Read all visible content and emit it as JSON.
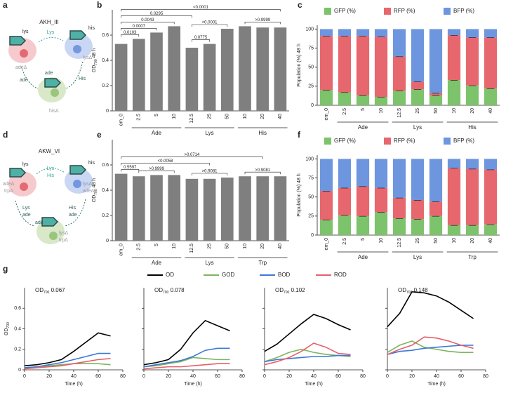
{
  "panel_labels": [
    "a",
    "b",
    "c",
    "d",
    "e",
    "f",
    "g"
  ],
  "diagrams": [
    {
      "title": "AKH_III",
      "labels": [
        "lys",
        "his",
        "Lys",
        "adeΔ",
        "lysΔ",
        "ade",
        "His",
        "ade",
        "hisΔ"
      ]
    },
    {
      "title": "AKW_VI",
      "labels": [
        "lys",
        "his",
        "Lys",
        "His",
        "adeΔ",
        "trpΔ",
        "lysΔ",
        "adeΔ",
        "Lys",
        "ade",
        "His",
        "ade",
        "ade",
        "lysΔ",
        "trpΔ"
      ]
    }
  ],
  "chart_data": [
    {
      "type": "bar",
      "ylabel": [
        "OD",
        "700",
        " 48 h"
      ],
      "color": "#7f7f7f",
      "categories": [
        "em_0",
        "2.5",
        "5",
        "10",
        "12.5",
        "25",
        "50",
        "10",
        "20",
        "40"
      ],
      "values": [
        0.53,
        0.57,
        0.62,
        0.67,
        0.5,
        0.53,
        0.65,
        0.67,
        0.66,
        0.66
      ],
      "groups": [
        {
          "label": "Ade",
          "span": [
            1,
            3
          ]
        },
        {
          "label": "Lys",
          "span": [
            4,
            6
          ]
        },
        {
          "label": "His",
          "span": [
            7,
            9
          ]
        }
      ],
      "brackets": [
        {
          "between": [
            0,
            1
          ],
          "label": "0.0103"
        },
        {
          "between": [
            0,
            2
          ],
          "label": "0.0007"
        },
        {
          "between": [
            0,
            3
          ],
          "label": "0.0043"
        },
        {
          "between": [
            0,
            4
          ],
          "label": "0.0295"
        },
        {
          "between": [
            0,
            9
          ],
          "label": "<0.0001"
        },
        {
          "between": [
            4,
            5
          ],
          "label": "0.0775"
        },
        {
          "between": [
            4,
            6
          ],
          "label": "<0.0001"
        },
        {
          "between": [
            7,
            9
          ],
          "label": ">0.9999"
        }
      ],
      "ylim": [
        0,
        0.8
      ],
      "yticks": [
        0,
        0.2,
        0.4,
        0.6
      ]
    },
    {
      "type": "stacked_bar",
      "ylabel": [
        "Population (%) 48 h"
      ],
      "categories": [
        "em_0",
        "2.5",
        "5",
        "10",
        "12.5",
        "25",
        "50",
        "10",
        "20",
        "40"
      ],
      "series": [
        {
          "name": "GFP (%)",
          "color": "#7cc36b",
          "values": [
            20,
            17,
            13,
            11,
            19,
            21,
            13,
            33,
            26,
            22
          ]
        },
        {
          "name": "RFP (%)",
          "color": "#e7676f",
          "values": [
            71,
            74,
            78,
            79,
            45,
            10,
            3,
            59,
            63,
            67
          ]
        },
        {
          "name": "BFP (%)",
          "color": "#6d96df",
          "values": [
            9,
            9,
            9,
            10,
            36,
            69,
            84,
            8,
            11,
            11
          ]
        }
      ],
      "groups": [
        {
          "label": "Ade",
          "span": [
            1,
            3
          ]
        },
        {
          "label": "Lys",
          "span": [
            4,
            6
          ]
        },
        {
          "label": "His",
          "span": [
            7,
            9
          ]
        }
      ],
      "ylim": [
        0,
        105
      ],
      "yticks": [
        0,
        25,
        50,
        75,
        100
      ]
    },
    {
      "type": "bar",
      "ylabel": [
        "OD",
        "700",
        " 48 h"
      ],
      "color": "#7f7f7f",
      "categories": [
        "em_0",
        "2.5",
        "5",
        "10",
        "12.5",
        "25",
        "50",
        "10",
        "20",
        "40"
      ],
      "values": [
        0.53,
        0.51,
        0.52,
        0.52,
        0.49,
        0.49,
        0.5,
        0.51,
        0.51,
        0.51
      ],
      "groups": [
        {
          "label": "Ade",
          "span": [
            1,
            3
          ]
        },
        {
          "label": "Lys",
          "span": [
            4,
            6
          ]
        },
        {
          "label": "Trp",
          "span": [
            7,
            9
          ]
        }
      ],
      "brackets": [
        {
          "between": [
            0,
            1
          ],
          "label": "0.5597"
        },
        {
          "between": [
            1,
            3
          ],
          "label": ">0.9999"
        },
        {
          "between": [
            0,
            5
          ],
          "label": "<0.0058"
        },
        {
          "between": [
            4,
            6
          ],
          "label": ">0.9081"
        },
        {
          "between": [
            0,
            8
          ],
          "label": ">0.0714"
        },
        {
          "between": [
            7,
            9
          ],
          "label": ">0.9081"
        }
      ],
      "ylim": [
        0,
        0.8
      ],
      "yticks": [
        0,
        0.2,
        0.4,
        0.6
      ]
    },
    {
      "type": "stacked_bar",
      "ylabel": [
        "Population (%) 48 h"
      ],
      "categories": [
        "em_0",
        "2.5",
        "5",
        "10",
        "12.5",
        "25",
        "50",
        "10",
        "20",
        "40"
      ],
      "series": [
        {
          "name": "GFP (%)",
          "color": "#7cc36b",
          "values": [
            20,
            26,
            25,
            30,
            22,
            21,
            25,
            13,
            13,
            14
          ]
        },
        {
          "name": "RFP (%)",
          "color": "#e7676f",
          "values": [
            38,
            36,
            39,
            32,
            27,
            25,
            19,
            75,
            74,
            72
          ]
        },
        {
          "name": "BFP (%)",
          "color": "#6d96df",
          "values": [
            42,
            38,
            36,
            38,
            51,
            54,
            56,
            12,
            13,
            14
          ]
        }
      ],
      "groups": [
        {
          "label": "Ade",
          "span": [
            1,
            3
          ]
        },
        {
          "label": "Lys",
          "span": [
            4,
            6
          ]
        },
        {
          "label": "Trp",
          "span": [
            7,
            9
          ]
        }
      ],
      "ylim": [
        0,
        105
      ],
      "yticks": [
        0,
        25,
        50,
        75,
        100
      ]
    },
    {
      "type": "line",
      "title": [
        "OD",
        "700",
        " 0.067"
      ],
      "ylabel": [
        "OD",
        "700"
      ],
      "xlabel": "Time (h)",
      "x": [
        0,
        10,
        20,
        30,
        40,
        50,
        60,
        70
      ],
      "series": [
        {
          "name": "OD",
          "color": "#000000",
          "values": [
            0.04,
            0.05,
            0.07,
            0.1,
            0.18,
            0.27,
            0.36,
            0.33
          ]
        },
        {
          "name": "GOD",
          "color": "#7cb55e",
          "values": [
            0.02,
            0.03,
            0.04,
            0.05,
            0.06,
            0.06,
            0.06,
            0.05
          ]
        },
        {
          "name": "BOD",
          "color": "#3c78d8",
          "values": [
            0.02,
            0.03,
            0.05,
            0.07,
            0.1,
            0.13,
            0.16,
            0.16
          ]
        },
        {
          "name": "ROD",
          "color": "#e4606a",
          "values": [
            0.01,
            0.02,
            0.03,
            0.04,
            0.06,
            0.08,
            0.1,
            0.11
          ]
        }
      ],
      "xlim": [
        0,
        80
      ],
      "xticks": [
        0,
        20,
        40,
        60,
        80
      ],
      "ylim": [
        0,
        0.8
      ],
      "yticks": [
        0,
        0.2,
        0.4,
        0.6
      ],
      "show_ytick_labels": true
    },
    {
      "type": "line",
      "title": [
        "OD",
        "700",
        " 0.078"
      ],
      "xlabel": "Time (h)",
      "x": [
        0,
        10,
        20,
        30,
        40,
        50,
        60,
        70
      ],
      "series": [
        {
          "name": "OD",
          "color": "#000000",
          "values": [
            0.05,
            0.07,
            0.1,
            0.2,
            0.36,
            0.48,
            0.43,
            0.38
          ]
        },
        {
          "name": "GOD",
          "color": "#7cb55e",
          "values": [
            0.03,
            0.04,
            0.06,
            0.08,
            0.12,
            0.11,
            0.1,
            0.1
          ]
        },
        {
          "name": "BOD",
          "color": "#3c78d8",
          "values": [
            0.03,
            0.05,
            0.07,
            0.09,
            0.13,
            0.19,
            0.21,
            0.21
          ]
        },
        {
          "name": "ROD",
          "color": "#e4606a",
          "values": [
            0.01,
            0.02,
            0.03,
            0.03,
            0.04,
            0.05,
            0.06,
            0.06
          ]
        }
      ],
      "xlim": [
        0,
        80
      ],
      "xticks": [
        0,
        20,
        40,
        60,
        80
      ],
      "ylim": [
        0,
        0.8
      ],
      "yticks": [
        0,
        0.2,
        0.4,
        0.6
      ],
      "show_ytick_labels": false
    },
    {
      "type": "line",
      "title": [
        "OD",
        "700",
        " 0.102"
      ],
      "xlabel": "Time (h)",
      "x": [
        0,
        10,
        20,
        30,
        40,
        50,
        60,
        70
      ],
      "series": [
        {
          "name": "OD",
          "color": "#000000",
          "values": [
            0.18,
            0.25,
            0.35,
            0.45,
            0.54,
            0.5,
            0.44,
            0.39
          ]
        },
        {
          "name": "GOD",
          "color": "#7cb55e",
          "values": [
            0.08,
            0.12,
            0.17,
            0.2,
            0.17,
            0.15,
            0.14,
            0.13
          ]
        },
        {
          "name": "BOD",
          "color": "#3c78d8",
          "values": [
            0.08,
            0.1,
            0.11,
            0.12,
            0.13,
            0.13,
            0.14,
            0.14
          ]
        },
        {
          "name": "ROD",
          "color": "#e4606a",
          "values": [
            0.05,
            0.08,
            0.12,
            0.18,
            0.26,
            0.22,
            0.16,
            0.15
          ]
        }
      ],
      "xlim": [
        0,
        80
      ],
      "xticks": [
        0,
        20,
        40,
        60,
        80
      ],
      "ylim": [
        0,
        0.8
      ],
      "yticks": [
        0,
        0.2,
        0.4,
        0.6
      ],
      "show_ytick_labels": false
    },
    {
      "type": "line",
      "title": [
        "OD",
        "700",
        " 0.148"
      ],
      "xlabel": "Time (h)",
      "x": [
        0,
        10,
        20,
        30,
        40,
        50,
        60,
        70
      ],
      "series": [
        {
          "name": "OD",
          "color": "#000000",
          "values": [
            0.42,
            0.55,
            0.76,
            0.75,
            0.72,
            0.66,
            0.58,
            0.5
          ]
        },
        {
          "name": "GOD",
          "color": "#7cb55e",
          "values": [
            0.17,
            0.24,
            0.28,
            0.22,
            0.2,
            0.18,
            0.17,
            0.17
          ]
        },
        {
          "name": "BOD",
          "color": "#3c78d8",
          "values": [
            0.15,
            0.18,
            0.19,
            0.21,
            0.22,
            0.23,
            0.24,
            0.24
          ]
        },
        {
          "name": "ROD",
          "color": "#e4606a",
          "values": [
            0.15,
            0.2,
            0.24,
            0.32,
            0.31,
            0.28,
            0.24,
            0.21
          ]
        }
      ],
      "xlim": [
        0,
        80
      ],
      "xticks": [
        0,
        20,
        40,
        60,
        80
      ],
      "ylim": [
        0,
        0.8
      ],
      "yticks": [
        0,
        0.2,
        0.4,
        0.6
      ],
      "show_ytick_labels": false
    }
  ]
}
